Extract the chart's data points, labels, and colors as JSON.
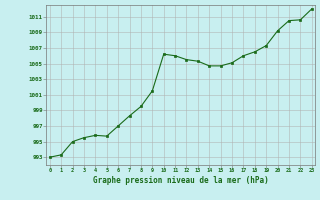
{
  "x": [
    0,
    1,
    2,
    3,
    4,
    5,
    6,
    7,
    8,
    9,
    10,
    11,
    12,
    13,
    14,
    15,
    16,
    17,
    18,
    19,
    20,
    21,
    22,
    23
  ],
  "y": [
    993.0,
    993.3,
    995.0,
    995.5,
    995.8,
    995.7,
    997.0,
    998.3,
    999.5,
    1001.5,
    1006.2,
    1006.0,
    1005.5,
    1005.3,
    1004.7,
    1004.7,
    1005.1,
    1006.0,
    1006.5,
    1007.3,
    1009.2,
    1010.5,
    1010.6,
    1012.0
  ],
  "line_color": "#1a6b1a",
  "marker_color": "#1a6b1a",
  "bg_color": "#c8eff0",
  "grid_color": "#b0b0b0",
  "ylabel_ticks": [
    993,
    995,
    997,
    999,
    1001,
    1003,
    1005,
    1007,
    1009,
    1011
  ],
  "xlabel_ticks": [
    0,
    1,
    2,
    3,
    4,
    5,
    6,
    7,
    8,
    9,
    10,
    11,
    12,
    13,
    14,
    15,
    16,
    17,
    18,
    19,
    20,
    21,
    22,
    23
  ],
  "xlabel": "Graphe pression niveau de la mer (hPa)",
  "xlim": [
    0,
    23
  ],
  "ylim": [
    992,
    1012.5
  ]
}
